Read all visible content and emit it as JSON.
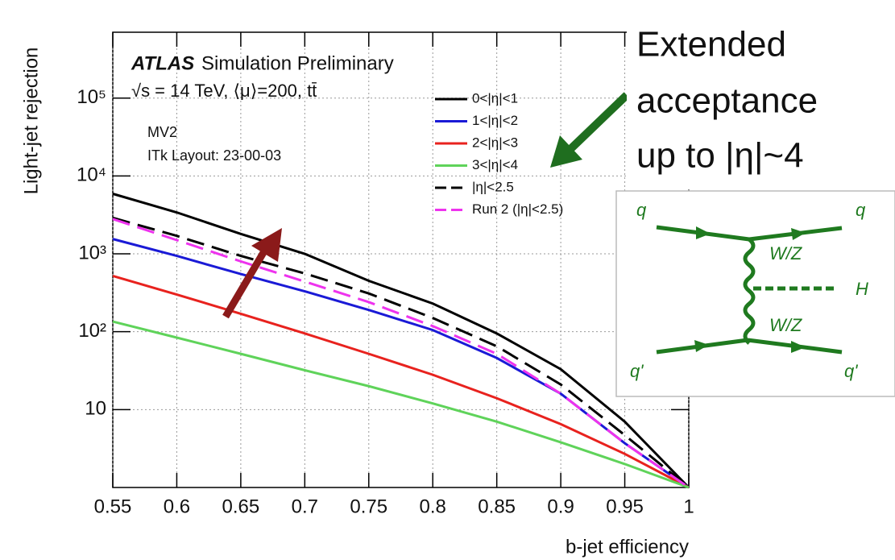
{
  "chart_data": {
    "type": "line",
    "xlabel": "b-jet efficiency",
    "ylabel": "Light-jet rejection",
    "atlas_label": "ATLAS",
    "atlas_suffix": "Simulation Preliminary",
    "energy_label": "√s = 14 TeV, ⟨μ⟩=200, tt̄",
    "tagger": "MV2",
    "layout": "ITk Layout: 23-00-03",
    "x": [
      0.55,
      0.6,
      0.65,
      0.7,
      0.75,
      0.8,
      0.85,
      0.9,
      0.95,
      1
    ],
    "series": [
      {
        "name": "0<|η|<1",
        "color": "#000000",
        "dashed": false,
        "values": [
          5900,
          3400,
          1800,
          1000,
          450,
          230,
          95,
          33,
          7,
          1
        ]
      },
      {
        "name": "1<|η|<2",
        "color": "#1a1ad6",
        "dashed": false,
        "values": [
          1550,
          940,
          550,
          330,
          190,
          105,
          46,
          16,
          3.7,
          1
        ]
      },
      {
        "name": "2<|η|<3",
        "color": "#e8221e",
        "dashed": false,
        "values": [
          520,
          300,
          170,
          95,
          52,
          28,
          14,
          6.5,
          2.7,
          1
        ]
      },
      {
        "name": "3<|η|<4",
        "color": "#5fd35a",
        "dashed": false,
        "values": [
          135,
          84,
          52,
          32,
          20,
          12,
          7,
          3.8,
          2,
          1
        ]
      },
      {
        "name": "|η|<2.5",
        "color": "#000000",
        "dashed": true,
        "values": [
          2900,
          1700,
          940,
          560,
          310,
          150,
          65,
          21,
          4.7,
          1
        ]
      },
      {
        "name": "Run 2 (|η|<2.5)",
        "color": "#ee33ee",
        "dashed": true,
        "values": [
          2800,
          1500,
          800,
          440,
          240,
          118,
          52,
          16,
          3.7,
          1
        ]
      }
    ],
    "xlim": [
      0.55,
      1
    ],
    "xticks": [
      0.55,
      0.6,
      0.65,
      0.7,
      0.75,
      0.8,
      0.85,
      0.9,
      0.95,
      1
    ],
    "ylim": [
      1,
      700000
    ],
    "ylog": true,
    "yticks": [
      10,
      {
        "value": 100,
        "label": "10²"
      },
      {
        "value": 1000,
        "label": "10³"
      },
      {
        "value": 10000,
        "label": "10⁴"
      },
      {
        "value": 100000,
        "label": "10⁵"
      }
    ],
    "grid": true
  },
  "callout": {
    "lines": [
      "Extended",
      "acceptance",
      "up to |η|~4"
    ]
  },
  "diagram": {
    "labels": [
      "q",
      "q",
      "W/Z",
      "H",
      "W/Z",
      "q'",
      "q'"
    ]
  }
}
